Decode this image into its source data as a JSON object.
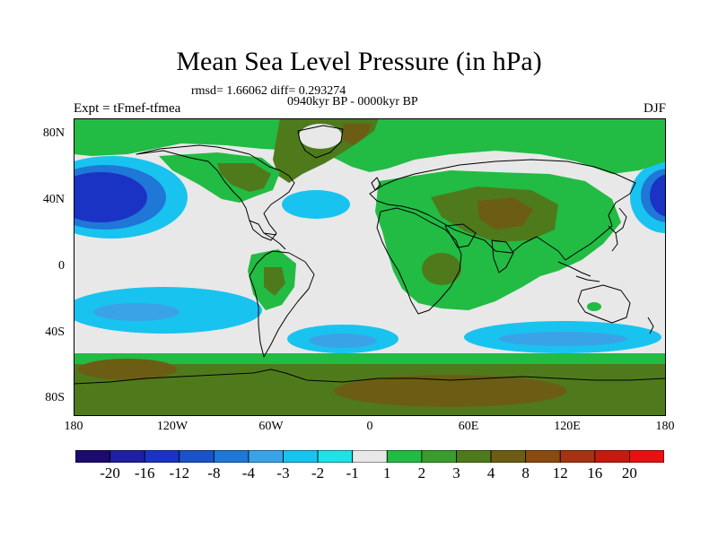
{
  "title": "Mean Sea Level Pressure (in hPa)",
  "stats": "rmsd= 1.66062  diff= 0.293274",
  "period": "0940kyr BP - 0000kyr BP",
  "experiment": "Expt = tFmef-tfmea",
  "season": "DJF",
  "y_axis": {
    "labels": [
      "80N",
      "40N",
      "0",
      "40S",
      "80S"
    ]
  },
  "x_axis": {
    "labels": [
      "180",
      "120W",
      "60W",
      "0",
      "60E",
      "120E",
      "180"
    ]
  },
  "colorbar": {
    "labels": [
      "-20",
      "-16",
      "-12",
      "-8",
      "-4",
      "-3",
      "-2",
      "-1",
      "1",
      "2",
      "3",
      "4",
      "8",
      "12",
      "16",
      "20"
    ],
    "colors": [
      "#1c0a6e",
      "#1e1fa3",
      "#1a33c4",
      "#1a52c8",
      "#1f77d8",
      "#3aa3e8",
      "#19c3ef",
      "#1fe1e6",
      "#e8e8e8",
      "#22bb44",
      "#3a9c2c",
      "#4f7a1c",
      "#6b5e14",
      "#8a4a10",
      "#a53210",
      "#c41a10",
      "#e81010"
    ]
  },
  "colors": {
    "ocean_background": "#e8e8e8",
    "coastline": "#000000"
  }
}
